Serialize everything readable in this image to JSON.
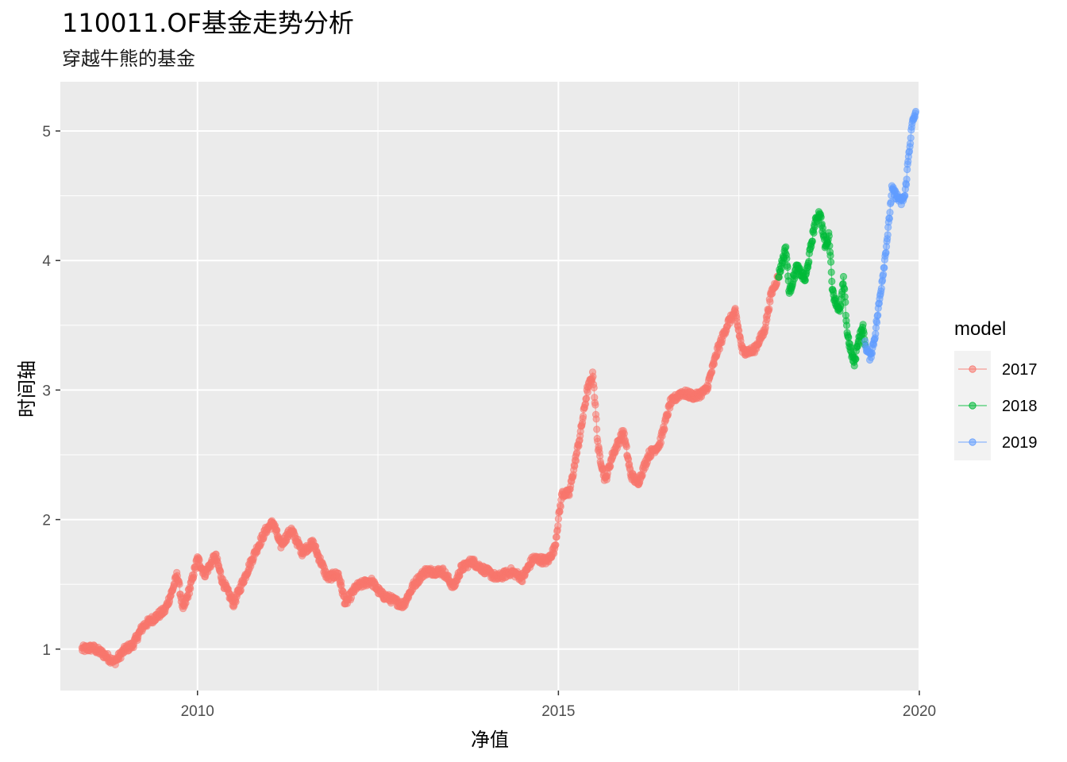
{
  "chart_data": {
    "type": "line",
    "title": "110011.OF基金走势分析",
    "subtitle": "穿越牛熊的基金",
    "xlabel": "净值",
    "ylabel": "时间轴",
    "xlim": [
      2008.1,
      2020.0
    ],
    "ylim": [
      0.68,
      5.38
    ],
    "x_ticks": [
      2010,
      2015,
      2020
    ],
    "x_tick_labels": [
      "2010",
      "2015",
      "2020"
    ],
    "y_ticks": [
      1,
      2,
      3,
      4,
      5
    ],
    "y_tick_labels": [
      "1",
      "2",
      "3",
      "4",
      "5"
    ],
    "grid": true,
    "legend": {
      "title": "model",
      "position": "right"
    },
    "series": [
      {
        "name": "2017",
        "color": "#F8766D",
        "points": [
          [
            2008.4,
            1.0
          ],
          [
            2008.55,
            1.01
          ],
          [
            2008.7,
            0.96
          ],
          [
            2008.85,
            0.9
          ],
          [
            2009.0,
            1.0
          ],
          [
            2009.1,
            1.03
          ],
          [
            2009.25,
            1.18
          ],
          [
            2009.4,
            1.24
          ],
          [
            2009.55,
            1.3
          ],
          [
            2009.65,
            1.45
          ],
          [
            2009.72,
            1.58
          ],
          [
            2009.8,
            1.3
          ],
          [
            2009.9,
            1.48
          ],
          [
            2010.0,
            1.7
          ],
          [
            2010.1,
            1.58
          ],
          [
            2010.25,
            1.72
          ],
          [
            2010.35,
            1.52
          ],
          [
            2010.5,
            1.35
          ],
          [
            2010.65,
            1.55
          ],
          [
            2010.8,
            1.75
          ],
          [
            2010.95,
            1.92
          ],
          [
            2011.05,
            1.98
          ],
          [
            2011.15,
            1.8
          ],
          [
            2011.3,
            1.92
          ],
          [
            2011.45,
            1.75
          ],
          [
            2011.6,
            1.82
          ],
          [
            2011.8,
            1.55
          ],
          [
            2011.95,
            1.58
          ],
          [
            2012.05,
            1.35
          ],
          [
            2012.2,
            1.48
          ],
          [
            2012.4,
            1.53
          ],
          [
            2012.55,
            1.42
          ],
          [
            2012.7,
            1.38
          ],
          [
            2012.85,
            1.34
          ],
          [
            2013.0,
            1.5
          ],
          [
            2013.15,
            1.6
          ],
          [
            2013.4,
            1.6
          ],
          [
            2013.55,
            1.48
          ],
          [
            2013.65,
            1.62
          ],
          [
            2013.8,
            1.68
          ],
          [
            2013.95,
            1.62
          ],
          [
            2014.15,
            1.55
          ],
          [
            2014.35,
            1.6
          ],
          [
            2014.5,
            1.55
          ],
          [
            2014.65,
            1.7
          ],
          [
            2014.85,
            1.68
          ],
          [
            2014.95,
            1.78
          ],
          [
            2015.0,
            2.0
          ],
          [
            2015.05,
            2.2
          ],
          [
            2015.15,
            2.2
          ],
          [
            2015.3,
            2.65
          ],
          [
            2015.4,
            3.0
          ],
          [
            2015.48,
            3.12
          ],
          [
            2015.55,
            2.55
          ],
          [
            2015.65,
            2.3
          ],
          [
            2015.75,
            2.5
          ],
          [
            2015.9,
            2.68
          ],
          [
            2016.0,
            2.35
          ],
          [
            2016.1,
            2.28
          ],
          [
            2016.25,
            2.5
          ],
          [
            2016.4,
            2.58
          ],
          [
            2016.55,
            2.9
          ],
          [
            2016.7,
            2.98
          ],
          [
            2016.9,
            2.95
          ],
          [
            2017.05,
            3.0
          ],
          [
            2017.2,
            3.3
          ],
          [
            2017.35,
            3.52
          ],
          [
            2017.45,
            3.6
          ],
          [
            2017.55,
            3.3
          ],
          [
            2017.7,
            3.3
          ],
          [
            2017.85,
            3.45
          ],
          [
            2017.95,
            3.75
          ],
          [
            2018.05,
            3.88
          ]
        ]
      },
      {
        "name": "2018",
        "color": "#00BA38",
        "points": [
          [
            2018.05,
            3.88
          ],
          [
            2018.15,
            4.1
          ],
          [
            2018.2,
            3.75
          ],
          [
            2018.3,
            3.95
          ],
          [
            2018.42,
            3.85
          ],
          [
            2018.55,
            4.28
          ],
          [
            2018.62,
            4.38
          ],
          [
            2018.7,
            4.1
          ],
          [
            2018.75,
            4.2
          ],
          [
            2018.8,
            3.75
          ],
          [
            2018.9,
            3.6
          ],
          [
            2018.95,
            3.85
          ],
          [
            2019.0,
            3.45
          ],
          [
            2019.05,
            3.3
          ],
          [
            2019.1,
            3.2
          ],
          [
            2019.15,
            3.38
          ],
          [
            2019.22,
            3.48
          ],
          [
            2019.25,
            3.35
          ]
        ]
      },
      {
        "name": "2019",
        "color": "#619CFF",
        "points": [
          [
            2019.25,
            3.35
          ],
          [
            2019.32,
            3.25
          ],
          [
            2019.38,
            3.4
          ],
          [
            2019.45,
            3.7
          ],
          [
            2019.52,
            4.0
          ],
          [
            2019.58,
            4.3
          ],
          [
            2019.62,
            4.55
          ],
          [
            2019.68,
            4.5
          ],
          [
            2019.75,
            4.45
          ],
          [
            2019.8,
            4.5
          ],
          [
            2019.85,
            4.8
          ],
          [
            2019.9,
            5.05
          ],
          [
            2019.95,
            5.15
          ]
        ]
      }
    ]
  }
}
